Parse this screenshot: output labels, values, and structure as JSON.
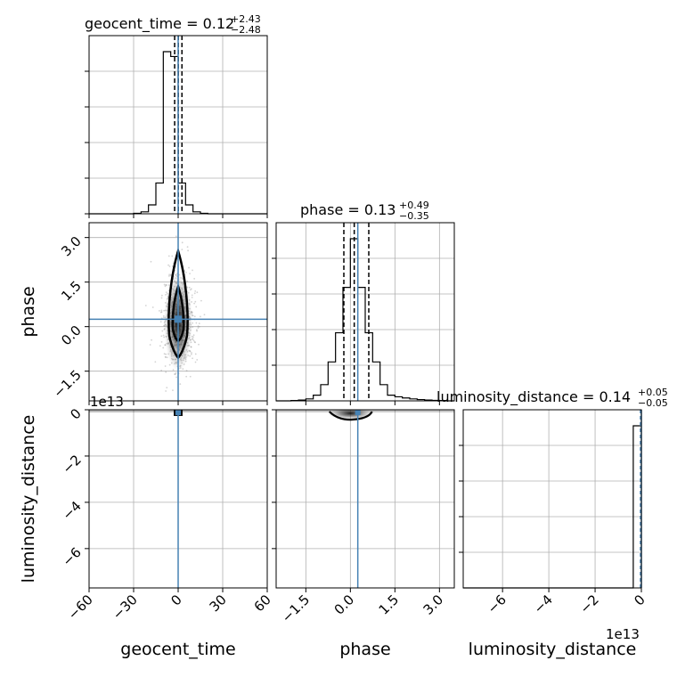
{
  "chart_data": {
    "type": "corner",
    "parameters": [
      "geocent_time",
      "phase",
      "luminosity_distance"
    ],
    "truths": {
      "geocent_time": 0.0,
      "phase": 0.25,
      "luminosity_distance": 0.0
    },
    "colors": {
      "hist": "#000000",
      "truth": "#4682b4",
      "grid": "#b0b0b0",
      "scatter": "#808080"
    },
    "grid": true,
    "diagonal": [
      {
        "param": "geocent_time",
        "title": {
          "base": "geocent_time = 0.12",
          "plus": "+2.43",
          "minus": "−2.48"
        },
        "xlim": [
          -60,
          60
        ],
        "bin_edges": [
          -60,
          -55,
          -50,
          -45,
          -40,
          -35,
          -30,
          -25,
          -20,
          -15,
          -10,
          -5,
          0,
          5,
          10,
          15,
          20,
          25,
          30,
          35,
          40,
          45,
          50,
          55,
          60
        ],
        "counts": [
          0,
          0,
          0,
          0,
          0,
          0,
          0.3,
          1.2,
          5.5,
          19,
          100,
          97,
          19,
          5.5,
          1.2,
          0.3,
          0,
          0,
          0,
          0,
          0,
          0,
          0,
          0
        ],
        "quantiles": [
          -2.36,
          0.12,
          2.55
        ],
        "truth": 0.0
      },
      {
        "param": "phase",
        "title": {
          "base": "phase = 0.13",
          "plus": "+0.49",
          "minus": "−0.35"
        },
        "xlim": [
          -2.5,
          3.5
        ],
        "bin_edges": [
          -2.5,
          -2.25,
          -2.0,
          -1.75,
          -1.5,
          -1.25,
          -1.0,
          -0.75,
          -0.5,
          -0.25,
          0.0,
          0.25,
          0.5,
          0.75,
          1.0,
          1.25,
          1.5,
          1.75,
          2.0,
          2.25,
          2.5,
          2.75,
          3.0,
          3.25,
          3.5
        ],
        "counts": [
          0,
          0,
          0.2,
          0.5,
          1.2,
          3.5,
          10,
          24,
          42,
          70,
          100,
          70,
          42,
          24,
          10,
          3.5,
          2.5,
          1.8,
          1.2,
          0.8,
          0.5,
          0.3,
          0.2,
          0
        ],
        "quantiles": [
          -0.22,
          0.13,
          0.62
        ],
        "truth": 0.25
      },
      {
        "param": "luminosity_distance",
        "title": {
          "base": "luminosity_distance = 0.14",
          "plus": "+0.05",
          "minus": "−0.05"
        },
        "xlim": [
          -7.7,
          0.0
        ],
        "bin_edges": [
          -7.7,
          -0.35,
          0.0
        ],
        "counts": [
          0,
          100
        ],
        "quantiles": [],
        "truth": 0.0
      }
    ],
    "ticks": {
      "geocent_time": {
        "values": [
          -60,
          -30,
          0,
          30,
          60
        ],
        "labels": [
          "−60",
          "−30",
          "0",
          "30",
          "60"
        ]
      },
      "phase": {
        "values": [
          -1.5,
          0.0,
          1.5,
          3.0
        ],
        "labels": [
          "−1.5",
          "0.0",
          "1.5",
          "3.0"
        ]
      },
      "luminosity_distance": {
        "values": [
          -6,
          -4,
          -2,
          0
        ],
        "labels": [
          "−6",
          "−4",
          "−2",
          "0"
        ]
      }
    },
    "axis_labels": {
      "geocent_time": "geocent_time",
      "phase": "phase",
      "luminosity_distance": "luminosity_distance"
    },
    "offset_text": "1e13"
  }
}
